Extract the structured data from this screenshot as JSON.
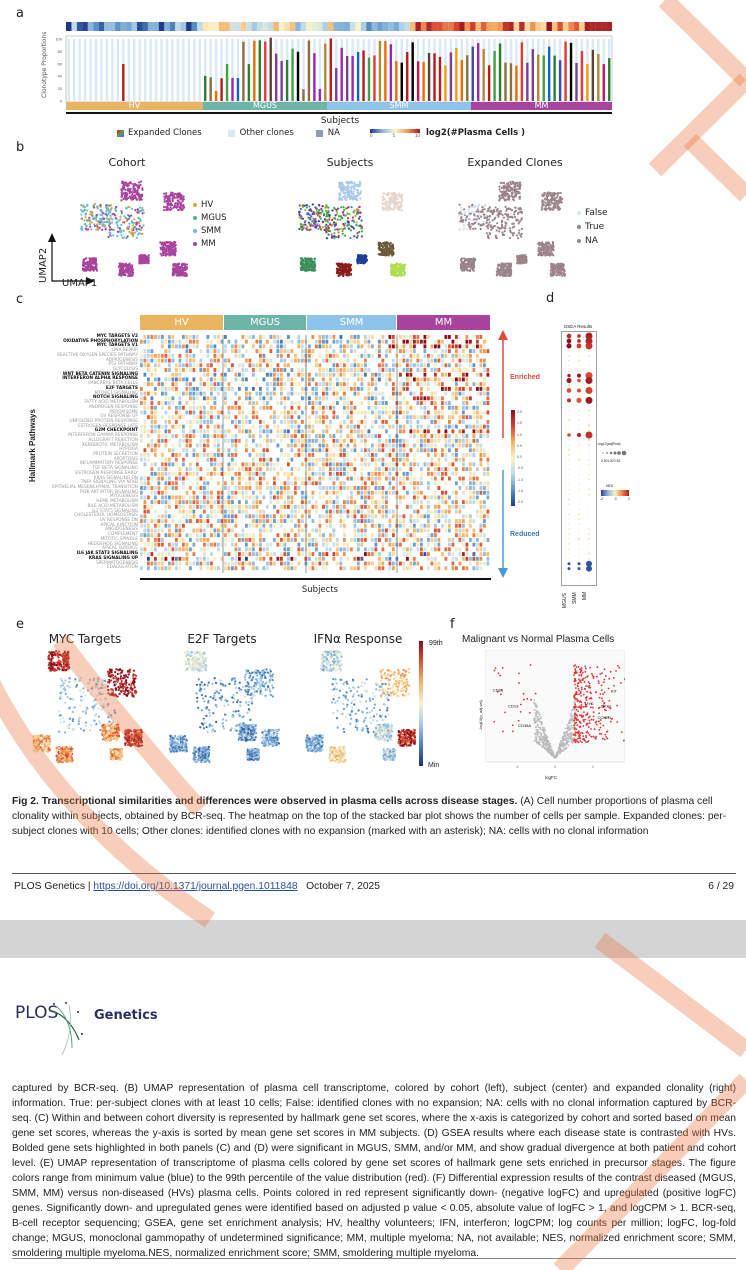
{
  "panel_labels": {
    "a": "a",
    "b": "b",
    "c": "c",
    "d": "d",
    "e": "e",
    "f": "f"
  },
  "panel_a": {
    "y_axis_label": "Clonotype Proportions",
    "y_ticks": [
      "0",
      "20",
      "40",
      "60",
      "80",
      "100"
    ],
    "cohorts": [
      {
        "label": "HV",
        "color": "#e9b560"
      },
      {
        "label": "MGUS",
        "color": "#6cb5a8"
      },
      {
        "label": "SMM",
        "color": "#8ec3ea"
      },
      {
        "label": "MM",
        "color": "#a8449d"
      }
    ],
    "x_axis_label": "Subjects",
    "legend": {
      "expanded": "Expanded Clones",
      "other": "Other clones",
      "na": "NA",
      "colorbar_ticks": [
        "0",
        "5",
        "10"
      ],
      "colorbar_title": "log2(#Plasma Cells )"
    }
  },
  "panel_b": {
    "titles": [
      "Cohort",
      "Subjects",
      "Expanded Clones"
    ],
    "cohort_legend": [
      {
        "label": "HV",
        "color": "#e9a030"
      },
      {
        "label": "MGUS",
        "color": "#4fae95"
      },
      {
        "label": "SMM",
        "color": "#6cb9e8"
      },
      {
        "label": "MM",
        "color": "#a8449d"
      }
    ],
    "clone_legend": [
      {
        "label": "False",
        "color": "#d8e6f3"
      },
      {
        "label": "True",
        "color": "#9b8589"
      },
      {
        "label": "NA",
        "color": "#9b8589"
      }
    ],
    "axis_y": "UMAP2",
    "axis_x": "UMAP1"
  },
  "panel_c": {
    "cohorts": [
      "HV",
      "MGUS",
      "SMM",
      "MM"
    ],
    "y_axis_label": "Hallmark Pathways",
    "x_axis_label": "Subjects",
    "pathways": [
      {
        "name": "MYC TARGETS V2",
        "bold": true
      },
      {
        "name": "OXIDATIVE PHOSPHORYLATION",
        "bold": true
      },
      {
        "name": "MYC TARGETS V1",
        "bold": true
      },
      {
        "name": "DNA REPAIR",
        "bold": false
      },
      {
        "name": "REACTIVE OXYGEN SPECIES PATHWAY",
        "bold": false
      },
      {
        "name": "ADIPOGENESIS",
        "bold": false
      },
      {
        "name": "P53 PATHWAY",
        "bold": false
      },
      {
        "name": "GLYCOLYSIS",
        "bold": false
      },
      {
        "name": "WNT BETA CATENIN SIGNALING",
        "bold": true
      },
      {
        "name": "INTERFERON ALPHA RESPONSE",
        "bold": true
      },
      {
        "name": "PANCREAS BETA CELLS",
        "bold": false
      },
      {
        "name": "E2F TARGETS",
        "bold": true
      },
      {
        "name": "MTORC1 SIGNALING",
        "bold": false
      },
      {
        "name": "NOTCH SIGNALING",
        "bold": true
      },
      {
        "name": "FATTY ACID METABOLISM",
        "bold": false
      },
      {
        "name": "ANDROGEN RESPONSE",
        "bold": false
      },
      {
        "name": "PEROXISOME",
        "bold": false
      },
      {
        "name": "UV RESPONSE UP",
        "bold": false
      },
      {
        "name": "UNFOLDED PROTEIN RESPONSE",
        "bold": false
      },
      {
        "name": "ESTROGEN RESPONSE LATE",
        "bold": false
      },
      {
        "name": "G2M CHECKPOINT",
        "bold": true
      },
      {
        "name": "INTERFERON GAMMA RESPONSE",
        "bold": false
      },
      {
        "name": "ALLOGRAFT REJECTION",
        "bold": false
      },
      {
        "name": "XENOBIOTIC METABOLISM",
        "bold": false
      },
      {
        "name": "HYPOXIA",
        "bold": false
      },
      {
        "name": "PROTEIN SECRETION",
        "bold": false
      },
      {
        "name": "APOPTOSIS",
        "bold": false
      },
      {
        "name": "INFLAMMATORY RESPONSE",
        "bold": false
      },
      {
        "name": "TGF BETA SIGNALING",
        "bold": false
      },
      {
        "name": "ESTROGEN RESPONSE EARLY",
        "bold": false
      },
      {
        "name": "KRAS SIGNALING DN",
        "bold": false
      },
      {
        "name": "TNFA SIGNALING VIA NFKB",
        "bold": false
      },
      {
        "name": "EPITHELIAL MESENCHYMAL TRANSITION",
        "bold": false
      },
      {
        "name": "PI3K AKT MTOR SIGNALING",
        "bold": false
      },
      {
        "name": "MYOGENESIS",
        "bold": false
      },
      {
        "name": "HEME METABOLISM",
        "bold": false
      },
      {
        "name": "BILE ACID METABOLISM",
        "bold": false
      },
      {
        "name": "IL2 STAT5 SIGNALING",
        "bold": false
      },
      {
        "name": "CHOLESTEROL HOMEOSTASIS",
        "bold": false
      },
      {
        "name": "UV RESPONSE DN",
        "bold": false
      },
      {
        "name": "APICAL JUNCTION",
        "bold": false
      },
      {
        "name": "ANGIOGENESIS",
        "bold": false
      },
      {
        "name": "COMPLEMENT",
        "bold": false
      },
      {
        "name": "MITOTIC SPINDLE",
        "bold": false
      },
      {
        "name": "HEDGEHOG SIGNALING",
        "bold": false
      },
      {
        "name": "APICAL SURFACE",
        "bold": false
      },
      {
        "name": "IL6 JAK STAT3 SIGNALING",
        "bold": true
      },
      {
        "name": "KRAS SIGNALING UP",
        "bold": true
      },
      {
        "name": "SPERMATOGENESIS",
        "bold": false
      },
      {
        "name": "COAGULATION",
        "bold": false
      }
    ],
    "enriched_label": "Enriched",
    "reduced_label": "Reduced",
    "colorbar_ticks": [
      "2.0",
      "1.5",
      "1.0",
      "0.5",
      "0.0",
      "-0.5",
      "-1.0",
      "-1.5",
      "-2.0"
    ]
  },
  "panel_d": {
    "title": "GSEA Results",
    "columns": [
      "MGUS",
      "SMM",
      "MM"
    ],
    "size_legend_title": "-log10(adjPval)",
    "size_legend_ticks": "0.501.522.53",
    "nes_title": "NES",
    "nes_ticks": [
      "-2",
      "0",
      "2"
    ]
  },
  "panel_e": {
    "titles": [
      "MYC Targets",
      "E2F Targets",
      "IFNα Response"
    ],
    "colorbar_max": "99th",
    "colorbar_min": "Min"
  },
  "panel_f": {
    "title": "Malignant vs Normal Plasma Cells",
    "x_label": "logFC",
    "y_label": "-log10(p_adj.val)",
    "x_ticks": [
      "-4",
      "-2",
      "0",
      "2",
      "4"
    ],
    "y_ticks": [
      "0",
      "5",
      "10"
    ],
    "gene_labels": [
      "CD81",
      "CD19",
      "CD38A",
      "KIT",
      "MYC",
      "DKK1",
      "CCND1"
    ]
  },
  "caption_top": {
    "bold": "Fig 2.  Transcriptional similarities and differences were observed in plasma cells across disease stages.",
    "text": " (A) Cell number proportions of plasma cell clonality within subjects, obtained by BCR-seq. The heatmap on the top of the stacked bar plot shows the number of cells per sample. Expanded clones: per-subject clones with 10 cells; Other clones: identified clones with no expansion (marked with an asterisk); NA: cells with no clonal information"
  },
  "footer": {
    "journal": "PLOS Genetics",
    "doi": "https://doi.org/10.1371/journal.pgen.1011848",
    "date": "October 7, 2025",
    "page": "6 / 29"
  },
  "logo": {
    "plos": "PLOS",
    "journal": "Genetics"
  },
  "caption_continued": "captured by BCR-seq. (B) UMAP representation of plasma cell transcriptome, colored by cohort (left), subject (center) and expanded clonality (right) information. True: per-subject clones with at least 10 cells; False: identified clones with no expansion; NA: cells with no clonal information captured by BCR-seq. (C) Within and between cohort diversity is represented by hallmark gene set scores, where the x-axis is categorized by cohort and sorted based on mean gene set scores, whereas the y-axis is sorted by mean gene set scores in MM subjects. (D) GSEA results where each disease state is contrasted with HVs. Bolded gene sets highlighted in both panels (C) and (D) were significant in MGUS, SMM, and/or MM, and show gradual divergence at both patient and cohort level. (E) UMAP representation of transcriptome of plasma cells colored by gene set scores of hallmark gene sets enriched in precursor stages. The figure colors range from minimum value (blue) to the 99th percentile of the value distribution (red). (F) Differential expression results of the contrast diseased (MGUS, SMM, MM) versus non-diseased (HVs) plasma cells. Points colored in red represent significantly down- (negative logFC) and upregulated (positive logFC) genes. Significantly down- and upregulated genes were identified based on adjusted p value < 0.05, absolute value of logFC > 1, and logCPM > 1. BCR-seq, B-cell receptor sequencing; GSEA, gene set enrichment analysis; HV, healthy volunteers; IFN, interferon; logCPM; log counts per million; logFC, log-fold change; MGUS, monoclonal gammopathy of undetermined significance; MM, multiple myeloma; NA, not available; NES, normalized enrichment score; SMM, smoldering multiple myeloma.NES, normalized enrichment score; SMM, smoldering multiple myeloma.",
  "colors": {
    "watermark": "#e8743b",
    "link": "#2a4fa0",
    "page_gap": "#d4d4d4"
  }
}
